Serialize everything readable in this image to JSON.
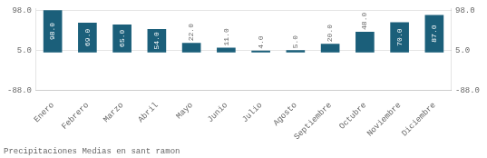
{
  "chart_data": {
    "type": "bar",
    "title": "Precipitaciones Medias en sant ramon",
    "categories": [
      "Enero",
      "Febrero",
      "Marzo",
      "Abril",
      "Mayo",
      "Junio",
      "Julio",
      "Agosto",
      "Septiembre",
      "Octubre",
      "Noviembre",
      "Diciembre"
    ],
    "values": [
      98.0,
      69.0,
      65.0,
      54.0,
      22.0,
      11.0,
      4.0,
      5.0,
      20.0,
      48.0,
      70.0,
      87.0
    ],
    "value_labels": [
      "98.0",
      "69.0",
      "65.0",
      "54.0",
      "22.0",
      "11.0",
      "4.0",
      "5.0",
      "20.0",
      "48.0",
      "70.0",
      "87.0"
    ],
    "color": "#1b5f7a",
    "data_labels": true,
    "ylim": [
      -88,
      101.92
    ],
    "yticks": [
      {
        "value": -88,
        "label": "-88.0"
      },
      {
        "value": 5,
        "label": "5.0"
      },
      {
        "value": 98,
        "label": "98.0"
      }
    ],
    "y2lim": [
      -88,
      101.92
    ],
    "y2ticks": [
      {
        "value": -88,
        "label": "-88.0"
      },
      {
        "value": 5,
        "label": "5.0"
      },
      {
        "value": 98,
        "label": "98.0"
      }
    ],
    "grid": true
  }
}
